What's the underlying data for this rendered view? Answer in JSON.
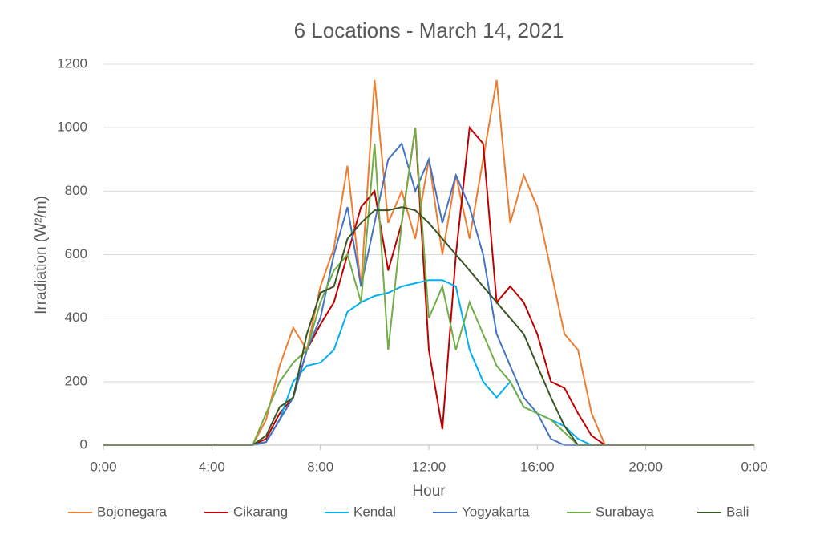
{
  "chart_data": {
    "type": "line",
    "title": "6 Locations - March 14, 2021",
    "x_label": "Hour",
    "y_label": "Irradiation (W²/m)",
    "x": [
      0,
      5.5,
      6,
      6.5,
      7,
      7.5,
      8,
      8.5,
      9,
      9.5,
      10,
      10.5,
      11,
      11.5,
      12,
      12.5,
      13,
      13.5,
      14,
      14.5,
      15,
      15.5,
      16,
      16.5,
      17,
      17.5,
      18,
      18.5,
      24
    ],
    "series": [
      {
        "name": "Bojonegara",
        "color": "#ED7D31",
        "values": [
          0,
          0,
          80,
          250,
          370,
          300,
          500,
          620,
          880,
          500,
          1150,
          700,
          800,
          650,
          900,
          600,
          850,
          650,
          900,
          1150,
          700,
          850,
          750,
          550,
          350,
          300,
          100,
          0,
          0
        ]
      },
      {
        "name": "Cikarang",
        "color": "#C00000",
        "values": [
          0,
          0,
          20,
          100,
          150,
          300,
          380,
          450,
          600,
          750,
          800,
          550,
          700,
          1000,
          300,
          50,
          600,
          1000,
          950,
          450,
          500,
          450,
          350,
          200,
          180,
          100,
          30,
          0,
          0
        ]
      },
      {
        "name": "Kendal",
        "color": "#00B0F0",
        "values": [
          0,
          0,
          10,
          80,
          200,
          250,
          260,
          300,
          420,
          450,
          470,
          480,
          500,
          510,
          520,
          520,
          500,
          300,
          200,
          150,
          200,
          120,
          100,
          80,
          60,
          20,
          0,
          0,
          0
        ]
      },
      {
        "name": "Yogyakarta",
        "color": "#4472C4",
        "values": [
          0,
          0,
          10,
          80,
          150,
          300,
          400,
          600,
          750,
          500,
          700,
          900,
          950,
          800,
          900,
          700,
          850,
          750,
          600,
          350,
          250,
          150,
          100,
          20,
          0,
          0,
          0,
          0,
          0
        ]
      },
      {
        "name": "Surabaya",
        "color": "#70AD47",
        "values": [
          0,
          0,
          100,
          200,
          260,
          300,
          450,
          550,
          600,
          450,
          950,
          300,
          700,
          1000,
          400,
          500,
          300,
          450,
          350,
          250,
          200,
          120,
          100,
          80,
          40,
          0,
          0,
          0,
          0
        ]
      },
      {
        "name": "Bali",
        "color": "#375623",
        "values": [
          0,
          0,
          30,
          120,
          150,
          350,
          480,
          500,
          650,
          700,
          740,
          740,
          750,
          740,
          700,
          650,
          600,
          550,
          500,
          450,
          400,
          350,
          250,
          150,
          60,
          0,
          0,
          0,
          0
        ]
      }
    ],
    "xlim": [
      0,
      24
    ],
    "xticks": [
      {
        "value": 0,
        "label": "0:00"
      },
      {
        "value": 4,
        "label": "4:00"
      },
      {
        "value": 8,
        "label": "8:00"
      },
      {
        "value": 12,
        "label": "12:00"
      },
      {
        "value": 16,
        "label": "16:00"
      },
      {
        "value": 20,
        "label": "20:00"
      },
      {
        "value": 24,
        "label": "0:00"
      }
    ],
    "ylim": [
      0,
      1200
    ],
    "yticks": [
      0,
      200,
      400,
      600,
      800,
      1000,
      1200
    ],
    "grid": true,
    "legend": "bottom"
  }
}
